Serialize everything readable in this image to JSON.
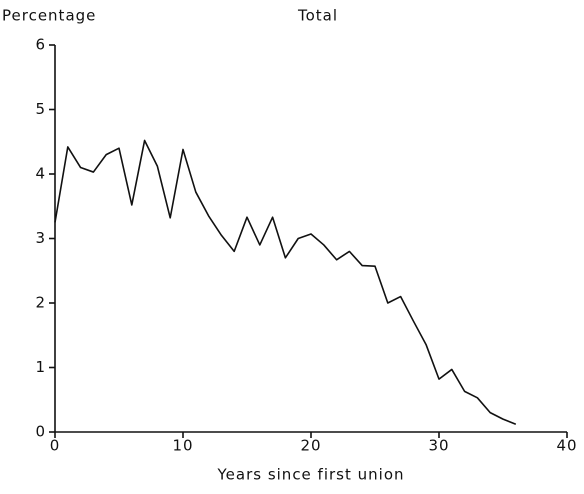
{
  "chart_data": {
    "type": "line",
    "title": "Total",
    "ylabel": "Percentage",
    "xlabel": "Years since first union",
    "x": [
      0,
      1,
      2,
      3,
      4,
      5,
      6,
      7,
      8,
      9,
      10,
      11,
      12,
      13,
      14,
      15,
      16,
      17,
      18,
      19,
      20,
      21,
      22,
      23,
      24,
      25,
      26,
      27,
      28,
      29,
      30,
      31,
      32,
      33,
      34,
      35,
      36
    ],
    "series": [
      {
        "color": "#111111",
        "values": [
          3.25,
          4.42,
          4.1,
          4.03,
          4.3,
          4.4,
          3.52,
          4.52,
          4.12,
          3.32,
          4.38,
          3.72,
          3.35,
          3.05,
          2.8,
          3.33,
          2.9,
          3.33,
          2.7,
          3.0,
          3.07,
          2.9,
          2.67,
          2.8,
          2.58,
          2.57,
          2.0,
          2.1,
          1.72,
          1.35,
          0.82,
          0.97,
          0.63,
          0.53,
          0.3,
          0.2,
          0.12
        ]
      }
    ],
    "xlim": [
      0,
      40
    ],
    "ylim": [
      0,
      6
    ],
    "xticks": [
      0,
      10,
      20,
      30,
      40
    ],
    "yticks": [
      0,
      1,
      2,
      3,
      4,
      5,
      6
    ],
    "grid": false
  }
}
